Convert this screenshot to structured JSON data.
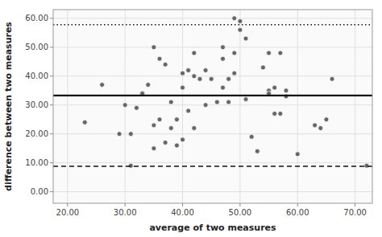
{
  "chart_data": {
    "type": "scatter",
    "xlabel": "average of two measures",
    "ylabel": "difference between two measures",
    "xlim": [
      17.5,
      73
    ],
    "ylim": [
      -4,
      63
    ],
    "xticks": [
      {
        "value": 20.0,
        "label": "20.00"
      },
      {
        "value": 30.0,
        "label": "30.00"
      },
      {
        "value": 40.0,
        "label": "40.00"
      },
      {
        "value": 50.0,
        "label": "50.00"
      },
      {
        "value": 60.0,
        "label": "60.00"
      },
      {
        "value": 70.0,
        "label": "70.00"
      }
    ],
    "yticks": [
      {
        "value": 0.0,
        "label": "0.00"
      },
      {
        "value": 10.0,
        "label": "10.00"
      },
      {
        "value": 20.0,
        "label": "20.00"
      },
      {
        "value": 30.0,
        "label": "30.00"
      },
      {
        "value": 40.0,
        "label": "40.00"
      },
      {
        "value": 50.0,
        "label": "50.00"
      },
      {
        "value": 60.0,
        "label": "60.00"
      }
    ],
    "grid": true,
    "series": [
      {
        "type": "scatter",
        "color": "#666666",
        "marker": "circle",
        "x": [
          23,
          26,
          29,
          30,
          31,
          31,
          32,
          33,
          33,
          34,
          35,
          35,
          35,
          36,
          36,
          37,
          37,
          38,
          38,
          39,
          39,
          40,
          40,
          40,
          41,
          41,
          42,
          42,
          42,
          43,
          43,
          44,
          44,
          45,
          45,
          46,
          47,
          47,
          47,
          48,
          48,
          49,
          49,
          49,
          50,
          50,
          51,
          51,
          52,
          53,
          54,
          55,
          55,
          55,
          56,
          56,
          57,
          57,
          58,
          58,
          60,
          63,
          64,
          65,
          66,
          72
        ],
        "values": [
          24,
          37,
          20,
          30,
          9,
          20,
          29,
          34,
          34,
          37,
          15,
          23,
          50,
          25,
          46,
          17,
          44,
          22,
          31,
          16,
          25,
          36,
          41,
          18,
          42,
          28,
          22,
          40,
          48,
          39,
          39,
          42,
          30,
          39,
          39,
          31,
          36,
          46,
          50,
          39,
          31,
          41,
          48,
          60,
          56,
          59,
          53,
          32,
          19,
          14,
          43,
          35,
          34,
          48,
          27,
          36,
          27,
          48,
          35,
          33,
          13,
          23,
          22,
          25,
          39,
          9
        ]
      },
      {
        "type": "hline",
        "color": "#111111",
        "line_style": "solid",
        "values": [
          33.3
        ]
      },
      {
        "type": "hline",
        "color": "#111111",
        "line_style": "dotted",
        "values": [
          57.8
        ]
      },
      {
        "type": "hline",
        "color": "#111111",
        "line_style": "dashed",
        "values": [
          8.8
        ]
      }
    ]
  }
}
